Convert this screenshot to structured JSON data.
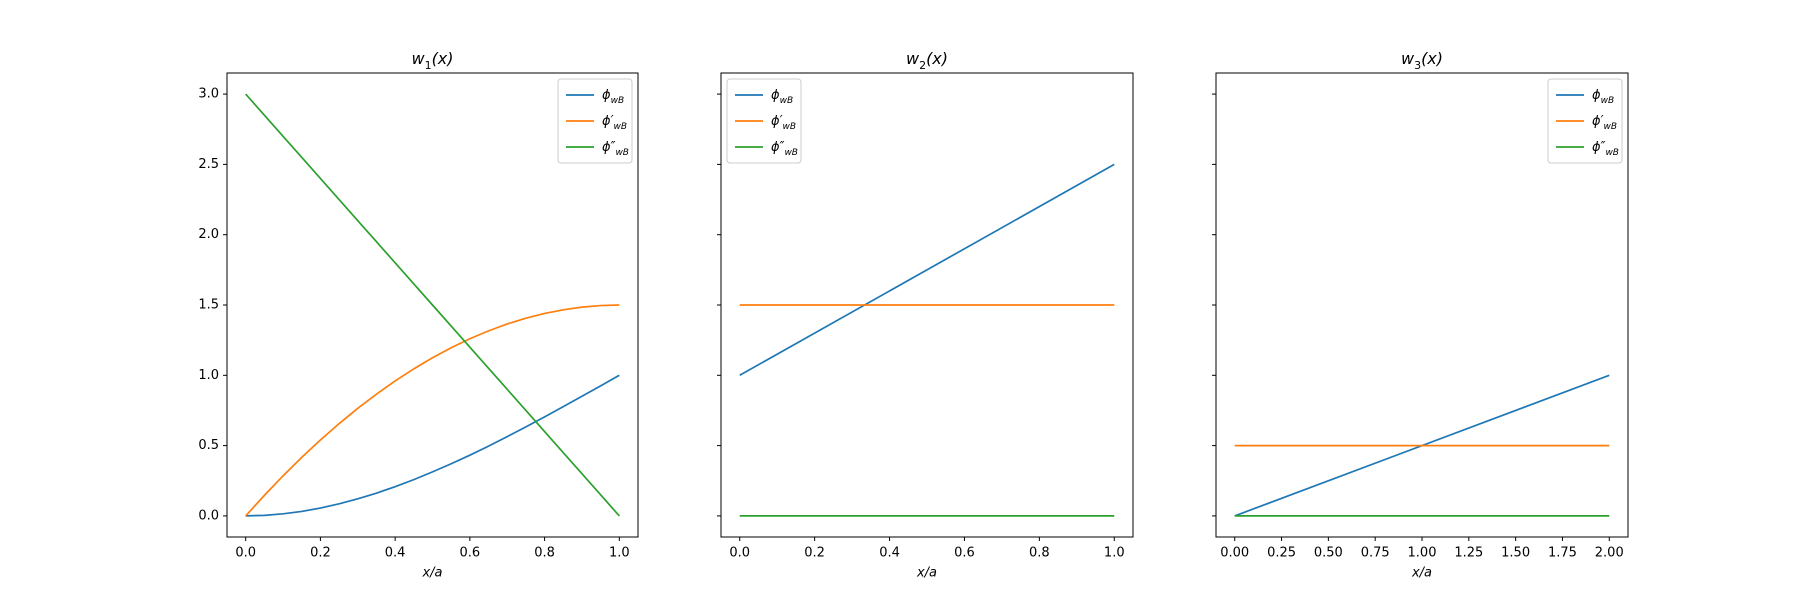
{
  "chart_data": [
    {
      "type": "line",
      "title": "w",
      "title_subscript": "1",
      "title_tail": "(x)",
      "xlabel": "x/a",
      "x": [
        0,
        0.05,
        0.1,
        0.15,
        0.2,
        0.25,
        0.3,
        0.35,
        0.4,
        0.45,
        0.5,
        0.55,
        0.6,
        0.65,
        0.7,
        0.75,
        0.8,
        0.85,
        0.9,
        0.95,
        1
      ],
      "series": [
        {
          "name": "ϕ",
          "subscript": "wB",
          "color": "#1f77b4",
          "values": [
            0,
            0.004,
            0.015,
            0.032,
            0.056,
            0.086,
            0.122,
            0.162,
            0.208,
            0.258,
            0.313,
            0.371,
            0.432,
            0.496,
            0.564,
            0.633,
            0.704,
            0.777,
            0.851,
            0.925,
            1
          ]
        },
        {
          "name": "ϕ′",
          "subscript": "wB",
          "color": "#ff7f0e",
          "values": [
            0,
            0.146,
            0.285,
            0.416,
            0.54,
            0.656,
            0.765,
            0.866,
            0.96,
            1.046,
            1.125,
            1.196,
            1.26,
            1.316,
            1.365,
            1.406,
            1.44,
            1.466,
            1.485,
            1.496,
            1.5
          ]
        },
        {
          "name": "ϕ″",
          "subscript": "wB",
          "color": "#2ca02c",
          "values": [
            3,
            2.85,
            2.7,
            2.55,
            2.4,
            2.25,
            2.1,
            1.95,
            1.8,
            1.65,
            1.5,
            1.35,
            1.2,
            1.05,
            0.9,
            0.75,
            0.6,
            0.45,
            0.3,
            0.15,
            0
          ]
        }
      ],
      "xlim": [
        -0.05,
        1.05
      ],
      "ylim": [
        -0.15,
        3.15
      ],
      "xticks": [
        {
          "value": 0,
          "label": "0.0"
        },
        0.2,
        0.4,
        0.6,
        0.8,
        {
          "value": 1,
          "label": "1.0"
        }
      ],
      "yticks": [
        {
          "value": 0,
          "label": "0.0"
        },
        0.5,
        {
          "value": 1,
          "label": "1.0"
        },
        1.5,
        {
          "value": 2,
          "label": "2.0"
        },
        2.5,
        {
          "value": 3,
          "label": "3.0"
        }
      ],
      "legend": "upper right"
    },
    {
      "type": "line",
      "title": "w",
      "title_subscript": "2",
      "title_tail": "(x)",
      "xlabel": "x/a",
      "x": [
        0,
        1
      ],
      "series": [
        {
          "name": "ϕ",
          "subscript": "wB",
          "color": "#1f77b4",
          "values": [
            1,
            2.5
          ]
        },
        {
          "name": "ϕ′",
          "subscript": "wB",
          "color": "#ff7f0e",
          "values": [
            1.5,
            1.5
          ]
        },
        {
          "name": "ϕ″",
          "subscript": "wB",
          "color": "#2ca02c",
          "values": [
            0,
            0
          ]
        }
      ],
      "xlim": [
        -0.05,
        1.05
      ],
      "ylim": [
        -0.15,
        3.15
      ],
      "xticks": [
        {
          "value": 0,
          "label": "0.0"
        },
        0.2,
        0.4,
        0.6,
        0.8,
        {
          "value": 1,
          "label": "1.0"
        }
      ],
      "yticks": [
        0,
        0.5,
        1,
        1.5,
        2,
        2.5,
        3
      ],
      "legend": "upper left"
    },
    {
      "type": "line",
      "title": "w",
      "title_subscript": "3",
      "title_tail": "(x)",
      "xlabel": "x/a",
      "x": [
        0,
        2
      ],
      "series": [
        {
          "name": "ϕ",
          "subscript": "wB",
          "color": "#1f77b4",
          "values": [
            0,
            1
          ]
        },
        {
          "name": "ϕ′",
          "subscript": "wB",
          "color": "#ff7f0e",
          "values": [
            0.5,
            0.5
          ]
        },
        {
          "name": "ϕ″",
          "subscript": "wB",
          "color": "#2ca02c",
          "values": [
            0,
            0
          ]
        }
      ],
      "xlim": [
        -0.1,
        2.1
      ],
      "ylim": [
        -0.15,
        3.15
      ],
      "xticks": [
        {
          "value": 0,
          "label": "0.00"
        },
        0.25,
        {
          "value": 0.5,
          "label": "0.50"
        },
        0.75,
        {
          "value": 1,
          "label": "1.00"
        },
        1.25,
        {
          "value": 1.5,
          "label": "1.50"
        },
        1.75,
        {
          "value": 2,
          "label": "2.00"
        }
      ],
      "yticks": [
        0,
        0.5,
        1,
        1.5,
        2,
        2.5,
        3
      ],
      "legend": "upper right"
    }
  ]
}
